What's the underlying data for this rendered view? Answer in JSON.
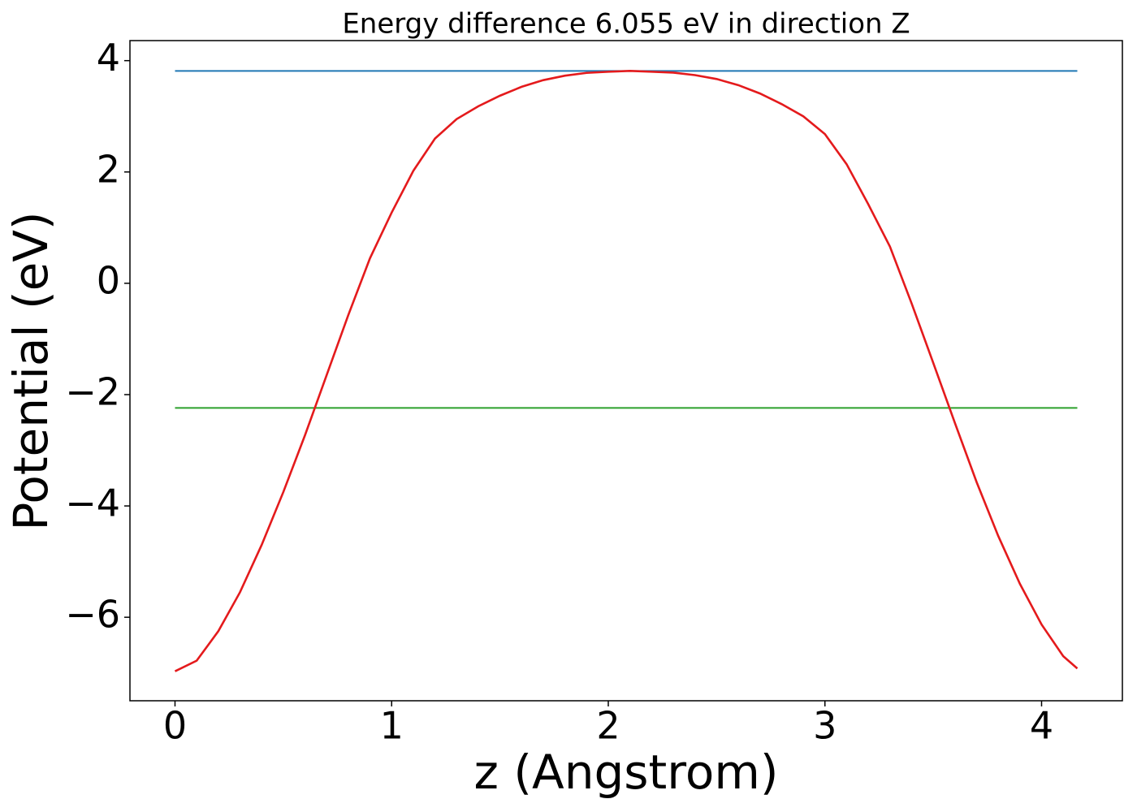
{
  "chart_data": {
    "type": "line",
    "title": "Energy difference 6.055 eV in direction Z",
    "x_label": "z (Angstrom)",
    "y_label": "Potential (eV)",
    "x": [
      0,
      0.1,
      0.2,
      0.3,
      0.4,
      0.5,
      0.6,
      0.7,
      0.8,
      0.9,
      1.0,
      1.1,
      1.2,
      1.3,
      1.4,
      1.5,
      1.6,
      1.7,
      1.8,
      1.9,
      2.0,
      2.1,
      2.2,
      2.3,
      2.4,
      2.5,
      2.6,
      2.7,
      2.8,
      2.9,
      3.0,
      3.1,
      3.2,
      3.3,
      3.4,
      3.5,
      3.6,
      3.7,
      3.8,
      3.9,
      4.0,
      4.1,
      4.165
    ],
    "series": [
      {
        "color": "#1f77b4",
        "values": [
          3.815,
          3.815,
          3.815,
          3.815,
          3.815,
          3.815,
          3.815,
          3.815,
          3.815,
          3.815,
          3.815,
          3.815,
          3.815,
          3.815,
          3.815,
          3.815,
          3.815,
          3.815,
          3.815,
          3.815,
          3.815,
          3.815,
          3.815,
          3.815,
          3.815,
          3.815,
          3.815,
          3.815,
          3.815,
          3.815,
          3.815,
          3.815,
          3.815,
          3.815,
          3.815,
          3.815,
          3.815,
          3.815,
          3.815,
          3.815,
          3.815,
          3.815,
          3.815
        ]
      },
      {
        "color": "#2ca02c",
        "values": [
          -2.24,
          -2.24,
          -2.24,
          -2.24,
          -2.24,
          -2.24,
          -2.24,
          -2.24,
          -2.24,
          -2.24,
          -2.24,
          -2.24,
          -2.24,
          -2.24,
          -2.24,
          -2.24,
          -2.24,
          -2.24,
          -2.24,
          -2.24,
          -2.24,
          -2.24,
          -2.24,
          -2.24,
          -2.24,
          -2.24,
          -2.24,
          -2.24,
          -2.24,
          -2.24,
          -2.24,
          -2.24,
          -2.24,
          -2.24,
          -2.24,
          -2.24,
          -2.24,
          -2.24,
          -2.24,
          -2.24,
          -2.24,
          -2.24,
          -2.24
        ]
      },
      {
        "color": "#e41a1c",
        "values": [
          -6.97,
          -6.78,
          -6.25,
          -5.55,
          -4.7,
          -3.75,
          -2.73,
          -1.65,
          -0.57,
          0.45,
          1.27,
          2.02,
          2.6,
          2.95,
          3.18,
          3.37,
          3.53,
          3.65,
          3.73,
          3.78,
          3.8,
          3.815,
          3.8,
          3.785,
          3.74,
          3.67,
          3.56,
          3.41,
          3.22,
          3.0,
          2.68,
          2.14,
          1.42,
          0.66,
          -0.36,
          -1.43,
          -2.51,
          -3.57,
          -4.54,
          -5.4,
          -6.13,
          -6.7,
          -6.92
        ]
      }
    ],
    "xlim": [
      -0.208,
      4.373
    ],
    "ylim": [
      -7.5,
      4.36
    ],
    "xticks": [
      0,
      1,
      2,
      3,
      4
    ],
    "yticks": [
      {
        "value": -6,
        "label": "−6"
      },
      {
        "value": -4,
        "label": "−4"
      },
      {
        "value": -2,
        "label": "−2"
      },
      0,
      2,
      4
    ],
    "grid": false
  }
}
